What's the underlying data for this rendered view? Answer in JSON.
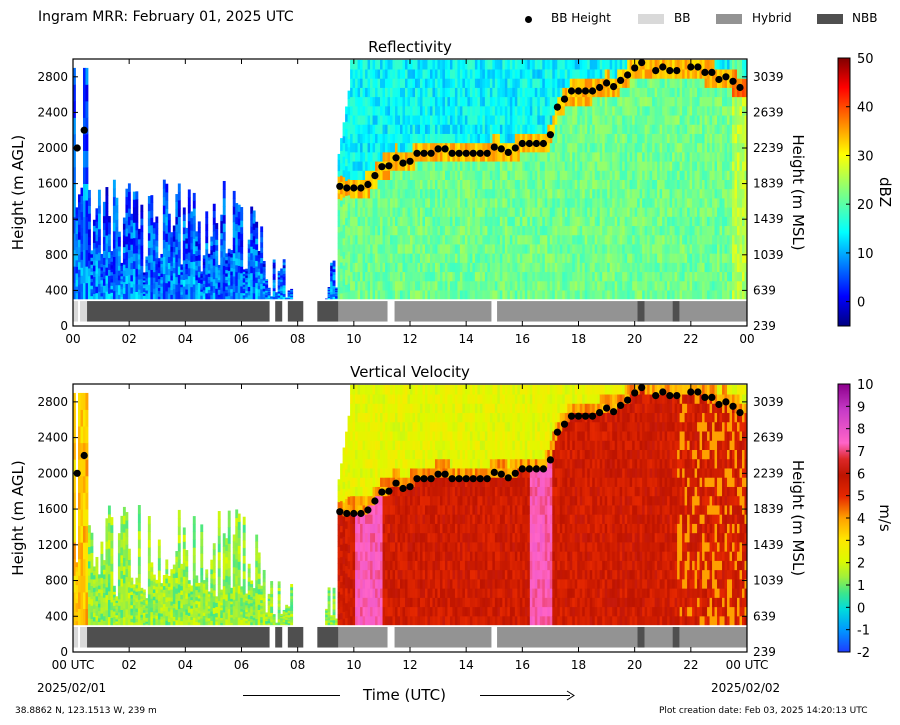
{
  "header": {
    "title": "Ingram MRR:  February 01, 2025 UTC",
    "legend": [
      {
        "label": "BB Height",
        "kind": "dot",
        "color": "#000000"
      },
      {
        "label": "BB",
        "kind": "rect",
        "color": "#d9d9d9"
      },
      {
        "label": "Hybrid",
        "kind": "rect",
        "color": "#939393"
      },
      {
        "label": "NBB",
        "kind": "rect",
        "color": "#4f4f4f"
      }
    ]
  },
  "footer": {
    "location": "38.8862 N, 123.1513 W, 239 m",
    "creation": "Plot creation date: Feb 03, 2025 14:20:13 UTC",
    "time_label": "Time (UTC)",
    "date_left": "2025/02/01",
    "date_right": "2025/02/02"
  },
  "chart_data": [
    {
      "type": "heatmap",
      "title": "Reflectivity",
      "ylabel": "Height (m AGL)",
      "ylabel_right": "Height (m MSL)",
      "xlim": [
        0,
        24
      ],
      "ylim": [
        0,
        3000
      ],
      "x_ticks": [
        "00",
        "02",
        "04",
        "06",
        "08",
        "10",
        "12",
        "14",
        "16",
        "18",
        "20",
        "22",
        "00"
      ],
      "y_ticks": [
        400,
        800,
        1200,
        1600,
        2000,
        2400,
        2800
      ],
      "y_ticks_right": [
        239,
        639,
        1039,
        1439,
        1839,
        2239,
        2639,
        3039
      ],
      "colorbar": {
        "label": "dBZ",
        "min": -5,
        "max": 50,
        "ticks": [
          0,
          10,
          20,
          30,
          40,
          50
        ]
      }
    },
    {
      "type": "heatmap",
      "title": "Vertical Velocity",
      "ylabel": "Height (m AGL)",
      "ylabel_right": "Height (m MSL)",
      "xlim": [
        0,
        24
      ],
      "ylim": [
        0,
        3000
      ],
      "x_ticks": [
        "00 UTC",
        "02",
        "04",
        "06",
        "08",
        "10",
        "12",
        "14",
        "16",
        "18",
        "20",
        "22",
        "00 UTC"
      ],
      "y_ticks": [
        400,
        800,
        1200,
        1600,
        2000,
        2400,
        2800
      ],
      "y_ticks_right": [
        239,
        639,
        1039,
        1439,
        1839,
        2239,
        2639,
        3039
      ],
      "colorbar": {
        "label": "m/s",
        "min": -2,
        "max": 10,
        "ticks": [
          -2,
          -1,
          0,
          1,
          2,
          3,
          4,
          5,
          6,
          7,
          8,
          9,
          10
        ]
      }
    }
  ],
  "bb_height": {
    "x": [
      0.15,
      0.4,
      9.5,
      9.75,
      10.0,
      10.25,
      10.5,
      10.75,
      11.0,
      11.25,
      11.5,
      11.75,
      12.0,
      12.25,
      12.5,
      12.75,
      13.0,
      13.25,
      13.5,
      13.75,
      14.0,
      14.25,
      14.5,
      14.75,
      15.0,
      15.25,
      15.5,
      15.75,
      16.0,
      16.25,
      16.5,
      16.75,
      17.0,
      17.25,
      17.5,
      17.75,
      18.0,
      18.25,
      18.5,
      18.75,
      19.0,
      19.25,
      19.5,
      19.75,
      20.0,
      20.25,
      20.75,
      21.0,
      21.25,
      21.5,
      22.0,
      22.25,
      22.5,
      22.75,
      23.0,
      23.25,
      23.5,
      23.75
    ],
    "y": [
      2000,
      2200,
      1570,
      1550,
      1550,
      1550,
      1590,
      1690,
      1790,
      1800,
      1890,
      1830,
      1850,
      1940,
      1940,
      1940,
      1990,
      1990,
      1940,
      1940,
      1940,
      1940,
      1940,
      1940,
      2010,
      1990,
      1950,
      2000,
      2050,
      2050,
      2050,
      2050,
      2150,
      2460,
      2550,
      2640,
      2640,
      2640,
      2640,
      2680,
      2730,
      2690,
      2760,
      2820,
      2900,
      2960,
      2870,
      2910,
      2870,
      2870,
      2910,
      2910,
      2850,
      2850,
      2770,
      2800,
      2750,
      2680
    ]
  },
  "bb_type": {
    "segments": [
      {
        "x0": 0.0,
        "x1": 0.18,
        "type": "BB"
      },
      {
        "x0": 0.25,
        "x1": 0.5,
        "type": "BB"
      },
      {
        "x0": 0.5,
        "x1": 7.0,
        "type": "NBB"
      },
      {
        "x0": 7.2,
        "x1": 7.45,
        "type": "NBB"
      },
      {
        "x0": 7.65,
        "x1": 8.2,
        "type": "NBB"
      },
      {
        "x0": 8.7,
        "x1": 9.45,
        "type": "NBB"
      },
      {
        "x0": 9.45,
        "x1": 11.2,
        "type": "Hybrid"
      },
      {
        "x0": 11.45,
        "x1": 14.9,
        "type": "Hybrid"
      },
      {
        "x0": 15.1,
        "x1": 20.1,
        "type": "Hybrid"
      },
      {
        "x0": 20.1,
        "x1": 20.35,
        "type": "NBB"
      },
      {
        "x0": 20.35,
        "x1": 21.35,
        "type": "Hybrid"
      },
      {
        "x0": 21.35,
        "x1": 21.6,
        "type": "NBB"
      },
      {
        "x0": 21.6,
        "x1": 24.0,
        "type": "Hybrid"
      }
    ]
  }
}
